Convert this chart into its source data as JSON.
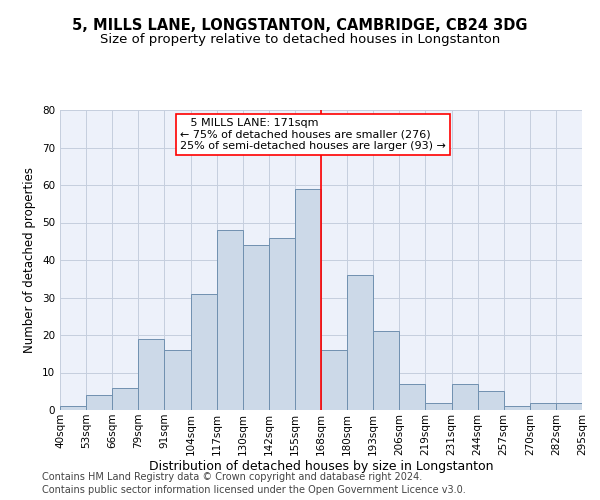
{
  "title1": "5, MILLS LANE, LONGSTANTON, CAMBRIDGE, CB24 3DG",
  "title2": "Size of property relative to detached houses in Longstanton",
  "xlabel": "Distribution of detached houses by size in Longstanton",
  "ylabel": "Number of detached properties",
  "footer1": "Contains HM Land Registry data © Crown copyright and database right 2024.",
  "footer2": "Contains public sector information licensed under the Open Government Licence v3.0.",
  "annotation_line1": "   5 MILLS LANE: 171sqm   ",
  "annotation_line2": "← 75% of detached houses are smaller (276)",
  "annotation_line3": "25% of semi-detached houses are larger (93) →",
  "bar_values": [
    1,
    4,
    6,
    19,
    16,
    31,
    48,
    44,
    46,
    59,
    16,
    36,
    21,
    7,
    2,
    7,
    5,
    1,
    2,
    2
  ],
  "bin_labels": [
    "40sqm",
    "53sqm",
    "66sqm",
    "79sqm",
    "91sqm",
    "104sqm",
    "117sqm",
    "130sqm",
    "142sqm",
    "155sqm",
    "168sqm",
    "180sqm",
    "193sqm",
    "206sqm",
    "219sqm",
    "231sqm",
    "244sqm",
    "257sqm",
    "270sqm",
    "282sqm",
    "295sqm"
  ],
  "bar_color": "#ccd9e8",
  "bar_edge_color": "#7090b0",
  "bg_color": "#edf1fa",
  "grid_color": "#c5cede",
  "red_line_bin": 10,
  "ylim": [
    0,
    80
  ],
  "yticks": [
    0,
    10,
    20,
    30,
    40,
    50,
    60,
    70,
    80
  ],
  "title1_fontsize": 10.5,
  "title2_fontsize": 9.5,
  "xlabel_fontsize": 9,
  "ylabel_fontsize": 8.5,
  "footer_fontsize": 7,
  "tick_fontsize": 7.5,
  "ann_fontsize": 8
}
